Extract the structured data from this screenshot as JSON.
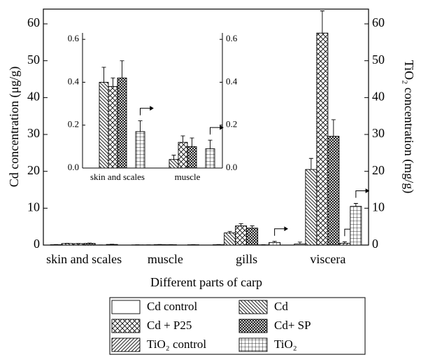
{
  "chart_data": [
    {
      "type": "bar",
      "y_label": "Cd concentration (μg/g)",
      "y2_label": "TiO₂ concentration (mg/g)",
      "x_label": "Different parts of carp",
      "categories": [
        "skin and scales",
        "muscle",
        "gills",
        "viscera"
      ],
      "ylim": [
        0,
        64
      ],
      "yticks": [
        0,
        10,
        20,
        30,
        40,
        50,
        60
      ],
      "y2lim": [
        0,
        64
      ],
      "y2ticks": [
        0,
        10,
        20,
        30,
        40,
        50,
        60
      ],
      "legend": "bottom",
      "series": [
        {
          "name": "Cd control",
          "color": "#000000",
          "pattern": "none",
          "values": [
            0.1,
            0.05,
            0.1,
            0.3
          ],
          "errors": [
            0.05,
            0.02,
            0.05,
            0.5
          ]
        },
        {
          "name": "Cd",
          "color": "#000000",
          "pattern": "backslash",
          "values": [
            0.42,
            0.04,
            3.3,
            20.5
          ],
          "errors": [
            0.07,
            0.02,
            0.4,
            3
          ]
        },
        {
          "name": "Cd + P25",
          "color": "#000000",
          "pattern": "cross",
          "values": [
            0.39,
            0.12,
            5.2,
            57.5
          ],
          "errors": [
            0.04,
            0.03,
            0.6,
            6
          ]
        },
        {
          "name": "Cd+ SP",
          "color": "#000000",
          "pattern": "dense-cross",
          "values": [
            0.45,
            0.1,
            4.6,
            29.5
          ],
          "errors": [
            0.08,
            0.04,
            0.6,
            4.5
          ]
        },
        {
          "name": "TiO₂ control",
          "color": "#000000",
          "pattern": "slash",
          "axis": "y2",
          "values": [
            0.02,
            0.01,
            0.05,
            0.5
          ],
          "errors": [
            0.01,
            0.01,
            0.05,
            0.4
          ]
        },
        {
          "name": "TiO₂",
          "color": "#000000",
          "pattern": "grid",
          "axis": "y2",
          "values": [
            0.17,
            0.09,
            0.7,
            10.5
          ],
          "errors": [
            0.05,
            0.04,
            0.3,
            0.8
          ]
        }
      ]
    },
    {
      "type": "bar",
      "categories": [
        "skin and scales",
        "muscle"
      ],
      "ylim": [
        0,
        0.63
      ],
      "yticks": [
        {
          "value": 0,
          "label": "0.0"
        },
        0.2,
        0.4,
        0.6
      ],
      "y2lim": [
        0,
        0.63
      ],
      "y2ticks": [
        {
          "value": 0,
          "label": "0.0"
        },
        0.2,
        0.4,
        0.6
      ],
      "series": [
        {
          "color": "#000000",
          "pattern": "none",
          "values": [
            null,
            null
          ],
          "errors": [
            null,
            null
          ]
        },
        {
          "color": "#000000",
          "pattern": "backslash",
          "values": [
            0.4,
            0.04
          ],
          "errors": [
            0.07,
            0.02
          ]
        },
        {
          "color": "#000000",
          "pattern": "cross",
          "values": [
            0.38,
            0.12
          ],
          "errors": [
            0.04,
            0.03
          ]
        },
        {
          "color": "#000000",
          "pattern": "dense-cross",
          "values": [
            0.42,
            0.1
          ],
          "errors": [
            0.08,
            0.04
          ]
        },
        {
          "color": "#000000",
          "pattern": "slash",
          "axis": "y2",
          "values": [
            null,
            null
          ],
          "errors": [
            null,
            null
          ]
        },
        {
          "color": "#000000",
          "pattern": "grid",
          "axis": "y2",
          "values": [
            0.17,
            0.09
          ],
          "errors": [
            0.05,
            0.04
          ]
        }
      ]
    }
  ]
}
